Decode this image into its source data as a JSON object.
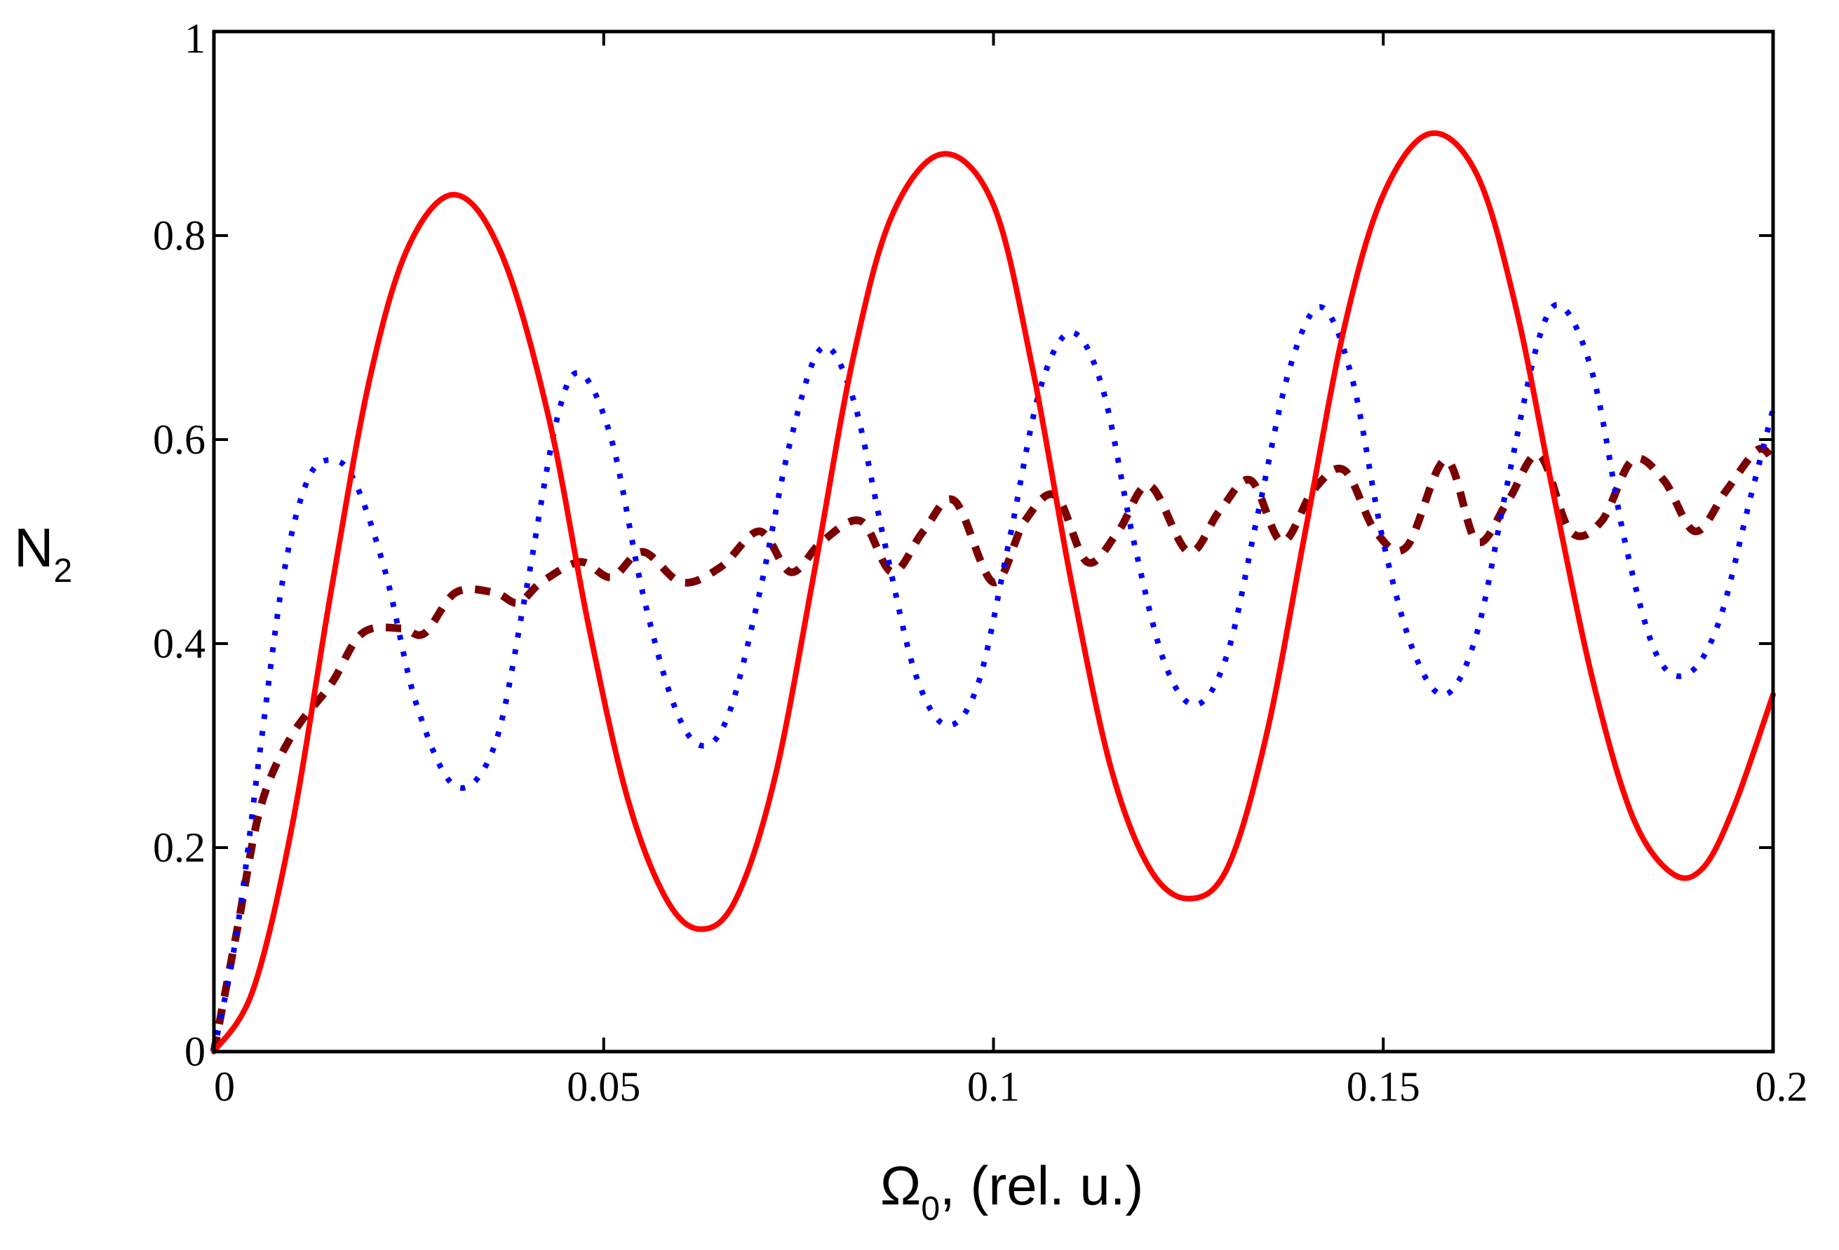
{
  "chart_data": {
    "type": "line",
    "title": "",
    "xlabel": {
      "symbol": "Ω",
      "subscript": "0",
      "rest": ", (rel. u.)"
    },
    "ylabel": {
      "symbol": "N",
      "subscript": "2"
    },
    "xlim": [
      0,
      0.2
    ],
    "ylim": [
      0,
      1
    ],
    "x_ticks": [
      0,
      0.05,
      0.1,
      0.15,
      0.2
    ],
    "x_tick_labels": [
      "0",
      "0.05",
      "0.1",
      "0.15",
      "0.2"
    ],
    "y_ticks": [
      0,
      0.2,
      0.4,
      0.6,
      0.8,
      1
    ],
    "y_tick_labels": [
      "0",
      "0.2",
      "0.4",
      "0.6",
      "0.8",
      "1"
    ],
    "grid": false,
    "series": [
      {
        "name": "solid",
        "style": "solid",
        "color": "#ff0000",
        "points": [
          [
            0,
            0
          ],
          [
            0.005,
            0.06
          ],
          [
            0.01,
            0.22
          ],
          [
            0.015,
            0.45
          ],
          [
            0.02,
            0.66
          ],
          [
            0.025,
            0.79
          ],
          [
            0.031,
            0.84
          ],
          [
            0.037,
            0.78
          ],
          [
            0.043,
            0.62
          ],
          [
            0.048,
            0.42
          ],
          [
            0.053,
            0.25
          ],
          [
            0.058,
            0.15
          ],
          [
            0.0625,
            0.12
          ],
          [
            0.067,
            0.15
          ],
          [
            0.072,
            0.27
          ],
          [
            0.077,
            0.47
          ],
          [
            0.082,
            0.68
          ],
          [
            0.087,
            0.82
          ],
          [
            0.0935,
            0.88
          ],
          [
            0.1,
            0.83
          ],
          [
            0.105,
            0.67
          ],
          [
            0.11,
            0.46
          ],
          [
            0.115,
            0.28
          ],
          [
            0.12,
            0.18
          ],
          [
            0.125,
            0.15
          ],
          [
            0.13,
            0.18
          ],
          [
            0.135,
            0.31
          ],
          [
            0.14,
            0.51
          ],
          [
            0.145,
            0.71
          ],
          [
            0.15,
            0.84
          ],
          [
            0.156,
            0.9
          ],
          [
            0.162,
            0.86
          ],
          [
            0.167,
            0.73
          ],
          [
            0.172,
            0.54
          ],
          [
            0.177,
            0.36
          ],
          [
            0.182,
            0.23
          ],
          [
            0.187,
            0.175
          ],
          [
            0.191,
            0.18
          ],
          [
            0.195,
            0.24
          ],
          [
            0.2,
            0.35
          ]
        ]
      },
      {
        "name": "dotted",
        "style": "dotted",
        "color": "#0000ff",
        "points": [
          [
            0,
            0
          ],
          [
            0.003,
            0.12
          ],
          [
            0.006,
            0.3
          ],
          [
            0.009,
            0.47
          ],
          [
            0.012,
            0.56
          ],
          [
            0.015,
            0.58
          ],
          [
            0.018,
            0.56
          ],
          [
            0.022,
            0.47
          ],
          [
            0.026,
            0.34
          ],
          [
            0.031,
            0.26
          ],
          [
            0.036,
            0.3
          ],
          [
            0.04,
            0.45
          ],
          [
            0.044,
            0.62
          ],
          [
            0.047,
            0.665
          ],
          [
            0.051,
            0.6
          ],
          [
            0.055,
            0.45
          ],
          [
            0.059,
            0.34
          ],
          [
            0.0625,
            0.3
          ],
          [
            0.066,
            0.33
          ],
          [
            0.07,
            0.45
          ],
          [
            0.074,
            0.6
          ],
          [
            0.078,
            0.69
          ],
          [
            0.082,
            0.64
          ],
          [
            0.086,
            0.5
          ],
          [
            0.09,
            0.37
          ],
          [
            0.094,
            0.32
          ],
          [
            0.098,
            0.36
          ],
          [
            0.102,
            0.5
          ],
          [
            0.106,
            0.65
          ],
          [
            0.11,
            0.705
          ],
          [
            0.114,
            0.65
          ],
          [
            0.118,
            0.5
          ],
          [
            0.122,
            0.38
          ],
          [
            0.126,
            0.34
          ],
          [
            0.13,
            0.39
          ],
          [
            0.134,
            0.53
          ],
          [
            0.138,
            0.67
          ],
          [
            0.142,
            0.73
          ],
          [
            0.146,
            0.66
          ],
          [
            0.15,
            0.5
          ],
          [
            0.154,
            0.39
          ],
          [
            0.158,
            0.35
          ],
          [
            0.162,
            0.41
          ],
          [
            0.166,
            0.56
          ],
          [
            0.17,
            0.7
          ],
          [
            0.173,
            0.73
          ],
          [
            0.177,
            0.66
          ],
          [
            0.181,
            0.5
          ],
          [
            0.185,
            0.39
          ],
          [
            0.189,
            0.37
          ],
          [
            0.193,
            0.42
          ],
          [
            0.197,
            0.54
          ],
          [
            0.2,
            0.63
          ]
        ]
      },
      {
        "name": "dashed",
        "style": "dashed",
        "color": "#7a0000",
        "points": [
          [
            0,
            0
          ],
          [
            0.003,
            0.12
          ],
          [
            0.006,
            0.24
          ],
          [
            0.01,
            0.31
          ],
          [
            0.015,
            0.36
          ],
          [
            0.019,
            0.41
          ],
          [
            0.024,
            0.415
          ],
          [
            0.027,
            0.41
          ],
          [
            0.031,
            0.45
          ],
          [
            0.036,
            0.45
          ],
          [
            0.039,
            0.44
          ],
          [
            0.042,
            0.46
          ],
          [
            0.047,
            0.48
          ],
          [
            0.051,
            0.465
          ],
          [
            0.055,
            0.49
          ],
          [
            0.06,
            0.46
          ],
          [
            0.065,
            0.475
          ],
          [
            0.07,
            0.51
          ],
          [
            0.074,
            0.47
          ],
          [
            0.078,
            0.5
          ],
          [
            0.083,
            0.52
          ],
          [
            0.087,
            0.47
          ],
          [
            0.091,
            0.51
          ],
          [
            0.095,
            0.54
          ],
          [
            0.1,
            0.46
          ],
          [
            0.104,
            0.52
          ],
          [
            0.108,
            0.545
          ],
          [
            0.112,
            0.48
          ],
          [
            0.116,
            0.51
          ],
          [
            0.12,
            0.555
          ],
          [
            0.125,
            0.49
          ],
          [
            0.129,
            0.53
          ],
          [
            0.133,
            0.56
          ],
          [
            0.137,
            0.5
          ],
          [
            0.141,
            0.55
          ],
          [
            0.145,
            0.57
          ],
          [
            0.149,
            0.51
          ],
          [
            0.153,
            0.495
          ],
          [
            0.158,
            0.58
          ],
          [
            0.162,
            0.5
          ],
          [
            0.166,
            0.54
          ],
          [
            0.17,
            0.585
          ],
          [
            0.174,
            0.51
          ],
          [
            0.178,
            0.52
          ],
          [
            0.182,
            0.58
          ],
          [
            0.186,
            0.56
          ],
          [
            0.19,
            0.51
          ],
          [
            0.194,
            0.55
          ],
          [
            0.198,
            0.59
          ],
          [
            0.2,
            0.58
          ]
        ]
      }
    ]
  }
}
